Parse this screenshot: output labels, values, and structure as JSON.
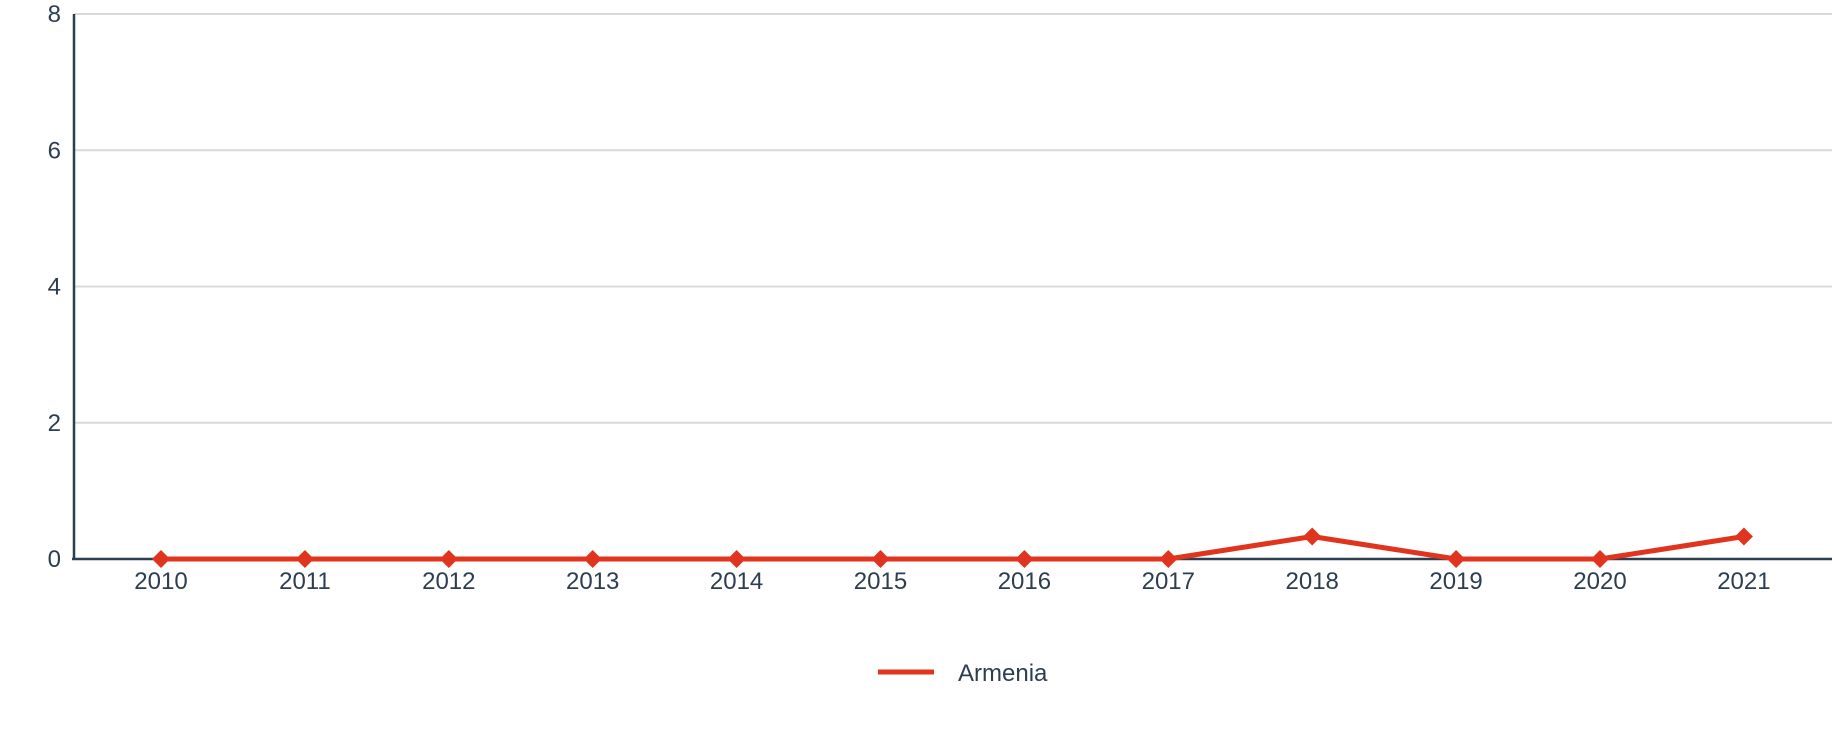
{
  "chart_data": {
    "type": "line",
    "title": "",
    "xlabel": "",
    "ylabel": "",
    "x": [
      "2010",
      "2011",
      "2012",
      "2013",
      "2014",
      "2015",
      "2016",
      "2017",
      "2018",
      "2019",
      "2020",
      "2021"
    ],
    "series": [
      {
        "name": "Armenia",
        "color": "#e0341e",
        "marker": "diamond",
        "values": [
          0,
          0,
          0,
          0,
          0,
          0,
          0,
          0,
          0.33,
          0,
          0,
          0.33
        ]
      }
    ],
    "ylim": [
      0,
      8
    ],
    "yticks": [
      "0",
      "2",
      "4",
      "6",
      "8"
    ],
    "grid": true,
    "legend_position": "bottom-center",
    "colors": {
      "axis": "#2c3e50",
      "grid": "#d9d9d9",
      "text": "#2c3e50"
    }
  }
}
